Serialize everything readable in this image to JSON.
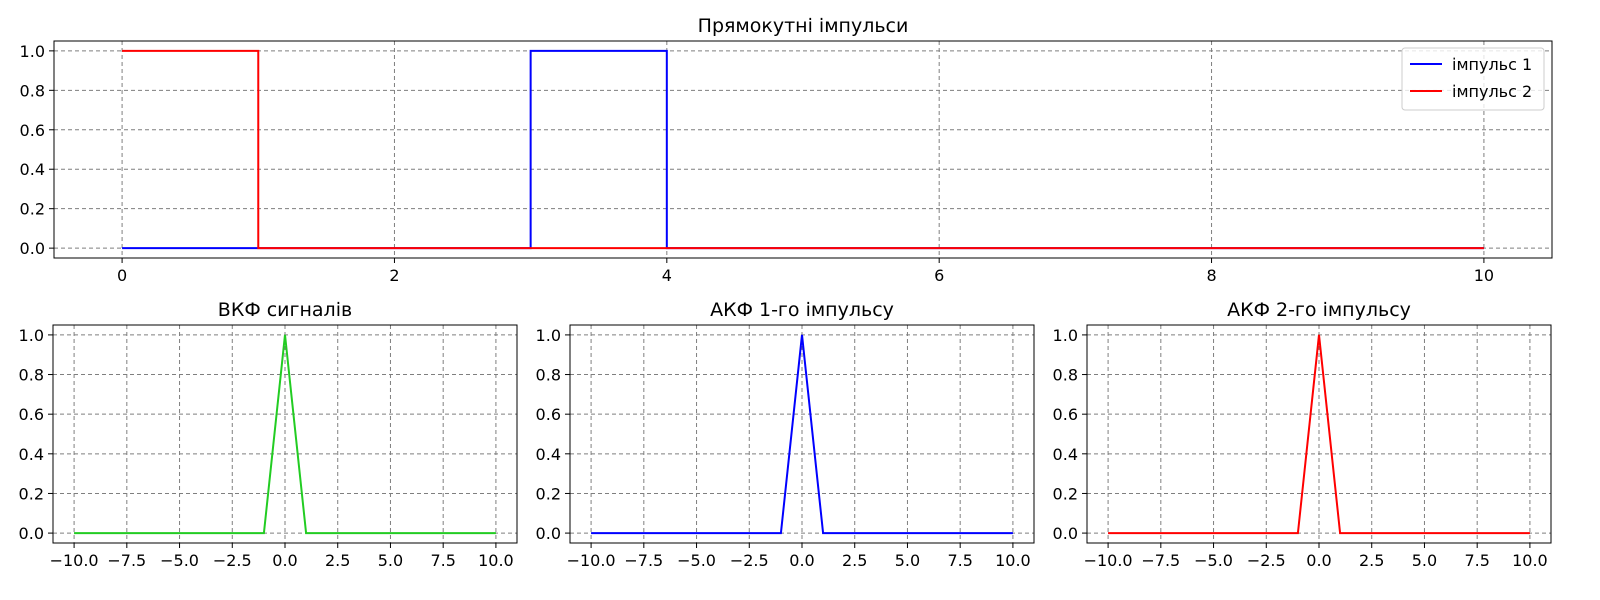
{
  "chart_data": [
    {
      "id": "top",
      "type": "line",
      "title": "Прямокутні імпульси",
      "xlim": [
        -0.5,
        10.5
      ],
      "ylim": [
        -0.05,
        1.05
      ],
      "xticks": [
        0,
        2,
        4,
        6,
        8,
        10
      ],
      "xtick_labels": [
        "0",
        "2",
        "4",
        "6",
        "8",
        "10"
      ],
      "yticks": [
        0,
        0.2,
        0.4,
        0.6,
        0.8,
        1.0
      ],
      "ytick_labels": [
        "0.0",
        "0.2",
        "0.4",
        "0.6",
        "0.8",
        "1.0"
      ],
      "grid": true,
      "legend": "top-right",
      "series": [
        {
          "name": "імпульс 1",
          "color": "#0000ff",
          "x": [
            0,
            3,
            3,
            4,
            4,
            10
          ],
          "y": [
            0,
            0,
            1,
            1,
            0,
            0
          ]
        },
        {
          "name": "імпульс 2",
          "color": "#ff0000",
          "x": [
            0,
            1,
            1,
            10
          ],
          "y": [
            1,
            1,
            0,
            0
          ]
        }
      ]
    },
    {
      "id": "ccf",
      "type": "line",
      "title": "ВКФ сигналів",
      "xlim": [
        -11,
        11
      ],
      "ylim": [
        -0.05,
        1.05
      ],
      "xticks": [
        -10,
        -7.5,
        -5,
        -2.5,
        0,
        2.5,
        5,
        7.5,
        10
      ],
      "xtick_labels": [
        "−10.0",
        "−7.5",
        "−5.0",
        "−2.5",
        "0.0",
        "2.5",
        "5.0",
        "7.5",
        "10.0"
      ],
      "yticks": [
        0,
        0.2,
        0.4,
        0.6,
        0.8,
        1.0
      ],
      "ytick_labels": [
        "0.0",
        "0.2",
        "0.4",
        "0.6",
        "0.8",
        "1.0"
      ],
      "grid": true,
      "series": [
        {
          "color": "#22cc22",
          "x": [
            -10,
            -1,
            0,
            1,
            10
          ],
          "y": [
            0,
            0,
            1,
            0,
            0
          ]
        }
      ]
    },
    {
      "id": "acf1",
      "type": "line",
      "title": "АКФ 1-го імпульсу",
      "xlim": [
        -11,
        11
      ],
      "ylim": [
        -0.05,
        1.05
      ],
      "xticks": [
        -10,
        -7.5,
        -5,
        -2.5,
        0,
        2.5,
        5,
        7.5,
        10
      ],
      "xtick_labels": [
        "−10.0",
        "−7.5",
        "−5.0",
        "−2.5",
        "0.0",
        "2.5",
        "5.0",
        "7.5",
        "10.0"
      ],
      "yticks": [
        0,
        0.2,
        0.4,
        0.6,
        0.8,
        1.0
      ],
      "ytick_labels": [
        "0.0",
        "0.2",
        "0.4",
        "0.6",
        "0.8",
        "1.0"
      ],
      "grid": true,
      "series": [
        {
          "color": "#0000ff",
          "x": [
            -10,
            -1,
            0,
            1,
            10
          ],
          "y": [
            0,
            0,
            1,
            0,
            0
          ]
        }
      ]
    },
    {
      "id": "acf2",
      "type": "line",
      "title": "АКФ 2-го імпульсу",
      "xlim": [
        -11,
        11
      ],
      "ylim": [
        -0.05,
        1.05
      ],
      "xticks": [
        -10,
        -7.5,
        -5,
        -2.5,
        0,
        2.5,
        5,
        7.5,
        10
      ],
      "xtick_labels": [
        "−10.0",
        "−7.5",
        "−5.0",
        "−2.5",
        "0.0",
        "2.5",
        "5.0",
        "7.5",
        "10.0"
      ],
      "yticks": [
        0,
        0.2,
        0.4,
        0.6,
        0.8,
        1.0
      ],
      "ytick_labels": [
        "0.0",
        "0.2",
        "0.4",
        "0.6",
        "0.8",
        "1.0"
      ],
      "grid": true,
      "series": [
        {
          "color": "#ff0000",
          "x": [
            -10,
            -1,
            0,
            1,
            10
          ],
          "y": [
            0,
            0,
            1,
            0,
            0
          ]
        }
      ]
    }
  ]
}
